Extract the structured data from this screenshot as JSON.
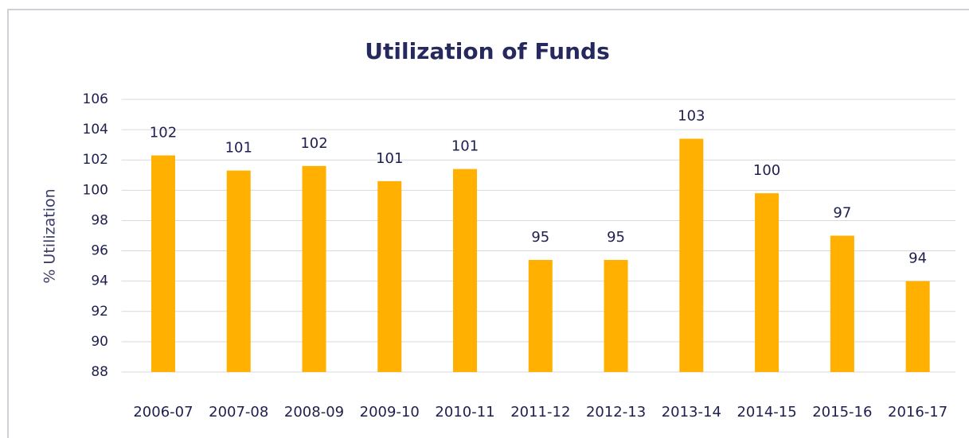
{
  "chart_data": {
    "type": "bar",
    "title": "Utilization of Funds",
    "y_label": "% Utilization",
    "categories": [
      "2006-07",
      "2007-08",
      "2008-09",
      "2009-10",
      "2010-11",
      "2011-12",
      "2012-13",
      "2013-14",
      "2014-15",
      "2015-16",
      "2016-17"
    ],
    "values": [
      102.3,
      101.3,
      101.6,
      100.6,
      101.4,
      95.4,
      95.4,
      103.4,
      99.8,
      97.0,
      94.0
    ],
    "value_labels": [
      "102",
      "101",
      "102",
      "101",
      "101",
      "95",
      "95",
      "103",
      "100",
      "97",
      "94"
    ],
    "color": "#ffb000",
    "ylim": [
      88,
      106
    ],
    "yticks": [
      88,
      90,
      92,
      94,
      96,
      98,
      100,
      102,
      104,
      106
    ],
    "grid": true
  }
}
